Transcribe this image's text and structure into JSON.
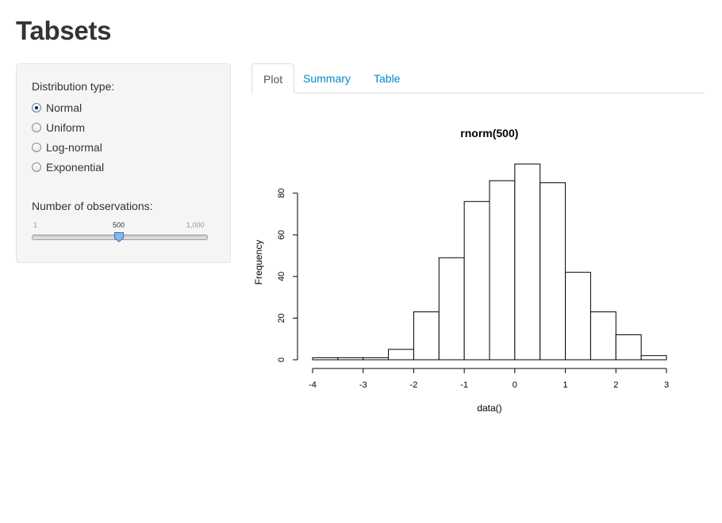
{
  "page": {
    "title": "Tabsets"
  },
  "sidebar": {
    "dist_label": "Distribution type:",
    "options": [
      {
        "label": "Normal",
        "checked": true
      },
      {
        "label": "Uniform",
        "checked": false
      },
      {
        "label": "Log-normal",
        "checked": false
      },
      {
        "label": "Exponential",
        "checked": false
      }
    ],
    "obs_label": "Number of observations:",
    "slider": {
      "min_label": "1",
      "value_label": "500",
      "max_label": "1,000",
      "min": 1,
      "max": 1000,
      "value": 500
    }
  },
  "tabs": [
    {
      "label": "Plot",
      "active": true
    },
    {
      "label": "Summary",
      "active": false
    },
    {
      "label": "Table",
      "active": false
    }
  ],
  "chart_data": {
    "type": "bar",
    "title": "rnorm(500)",
    "xlabel": "data()",
    "ylabel": "Frequency",
    "bin_edges": [
      -4,
      -3.5,
      -3,
      -2.5,
      -2,
      -1.5,
      -1,
      -0.5,
      0,
      0.5,
      1,
      1.5,
      2,
      2.5,
      3
    ],
    "values": [
      1,
      1,
      1,
      5,
      23,
      49,
      76,
      86,
      94,
      85,
      42,
      23,
      12,
      2
    ],
    "xlim": [
      -4,
      3
    ],
    "ylim": [
      0,
      94
    ],
    "x_ticks": [
      -4,
      -3,
      -2,
      -1,
      0,
      1,
      2,
      3
    ],
    "y_ticks": [
      0,
      20,
      40,
      60,
      80
    ]
  }
}
